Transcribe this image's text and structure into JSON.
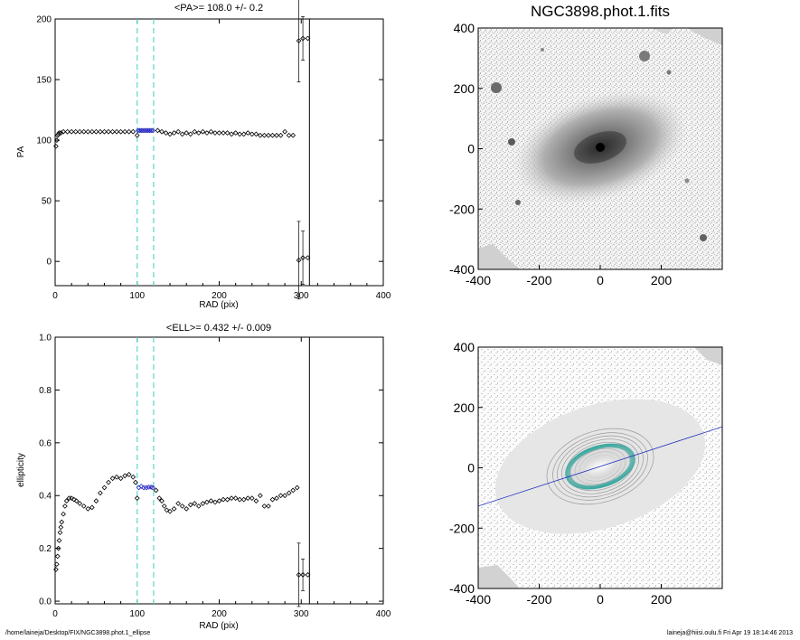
{
  "chart_data": [
    {
      "type": "scatter",
      "title": "<PA>= 108.0 +/-   0.2",
      "xlabel": "RAD (pix)",
      "ylabel": "PA",
      "xlim": [
        0,
        400
      ],
      "ylim": [
        -20,
        200
      ],
      "xticks": [
        0,
        100,
        200,
        300,
        400
      ],
      "yticks": [
        0,
        50,
        100,
        150,
        200
      ],
      "vlines_dashed": [
        100,
        120
      ],
      "vline_solid": 310,
      "series": [
        {
          "marker": "diamond",
          "color": "#000000",
          "points": [
            [
              1,
              95
            ],
            [
              2,
              100
            ],
            [
              3,
              104
            ],
            [
              4,
              105
            ],
            [
              5,
              106
            ],
            [
              7,
              106
            ],
            [
              10,
              107
            ],
            [
              15,
              107
            ],
            [
              20,
              107
            ],
            [
              25,
              107
            ],
            [
              30,
              107
            ],
            [
              35,
              107
            ],
            [
              40,
              107
            ],
            [
              45,
              107
            ],
            [
              50,
              107
            ],
            [
              55,
              107
            ],
            [
              60,
              107
            ],
            [
              65,
              107
            ],
            [
              70,
              107
            ],
            [
              75,
              107
            ],
            [
              80,
              107
            ],
            [
              85,
              107
            ],
            [
              90,
              107
            ],
            [
              95,
              107
            ],
            [
              100,
              104
            ],
            [
              125,
              108
            ],
            [
              130,
              107
            ],
            [
              135,
              106
            ],
            [
              140,
              105
            ],
            [
              145,
              106
            ],
            [
              150,
              107
            ],
            [
              155,
              105
            ],
            [
              160,
              106
            ],
            [
              165,
              105
            ],
            [
              170,
              107
            ],
            [
              175,
              106
            ],
            [
              180,
              107
            ],
            [
              185,
              106
            ],
            [
              190,
              107
            ],
            [
              195,
              106
            ],
            [
              200,
              106
            ],
            [
              205,
              106
            ],
            [
              210,
              106
            ],
            [
              215,
              105
            ],
            [
              220,
              106
            ],
            [
              225,
              105
            ],
            [
              230,
              105
            ],
            [
              235,
              106
            ],
            [
              240,
              105
            ],
            [
              245,
              105
            ],
            [
              250,
              104
            ],
            [
              255,
              104
            ],
            [
              260,
              104
            ],
            [
              265,
              104
            ],
            [
              270,
              104
            ],
            [
              275,
              104
            ],
            [
              280,
              107
            ],
            [
              285,
              104
            ],
            [
              290,
              104
            ]
          ],
          "error_points": [
            [
              297,
              182,
              34
            ],
            [
              302,
              184,
              18
            ],
            [
              308,
              184,
              0
            ],
            [
              297,
              1,
              32
            ],
            [
              302,
              3,
              22
            ],
            [
              308,
              3,
              0
            ]
          ]
        },
        {
          "marker": "diamond",
          "color": "#2020c0",
          "points": [
            [
              101,
              108
            ],
            [
              103,
              108
            ],
            [
              105,
              108
            ],
            [
              107,
              108
            ],
            [
              109,
              108
            ],
            [
              111,
              108
            ],
            [
              113,
              108
            ],
            [
              115,
              108
            ],
            [
              117,
              108
            ],
            [
              119,
              108
            ]
          ]
        }
      ]
    },
    {
      "type": "scatter",
      "title": "<ELL>= 0.432 +/-  0.009",
      "xlabel": "RAD (pix)",
      "ylabel": "ellipticity",
      "xlim": [
        0,
        400
      ],
      "ylim": [
        -0.01,
        1.0
      ],
      "xticks": [
        0,
        100,
        200,
        300,
        400
      ],
      "yticks": [
        0.0,
        0.2,
        0.4,
        0.6,
        0.8,
        1.0
      ],
      "vlines_dashed": [
        100,
        120
      ],
      "vline_solid": 310,
      "series": [
        {
          "marker": "diamond",
          "color": "#000000",
          "points": [
            [
              1,
              0.12
            ],
            [
              2,
              0.14
            ],
            [
              3,
              0.17
            ],
            [
              4,
              0.2
            ],
            [
              5,
              0.23
            ],
            [
              6,
              0.26
            ],
            [
              7,
              0.28
            ],
            [
              8,
              0.3
            ],
            [
              10,
              0.33
            ],
            [
              12,
              0.36
            ],
            [
              14,
              0.38
            ],
            [
              17,
              0.39
            ],
            [
              20,
              0.39
            ],
            [
              23,
              0.385
            ],
            [
              26,
              0.38
            ],
            [
              30,
              0.37
            ],
            [
              35,
              0.36
            ],
            [
              40,
              0.35
            ],
            [
              45,
              0.355
            ],
            [
              50,
              0.38
            ],
            [
              55,
              0.41
            ],
            [
              60,
              0.43
            ],
            [
              65,
              0.45
            ],
            [
              70,
              0.465
            ],
            [
              75,
              0.47
            ],
            [
              80,
              0.465
            ],
            [
              85,
              0.475
            ],
            [
              90,
              0.48
            ],
            [
              95,
              0.47
            ],
            [
              98,
              0.45
            ],
            [
              100,
              0.39
            ],
            [
              123,
              0.42
            ],
            [
              127,
              0.39
            ],
            [
              130,
              0.38
            ],
            [
              133,
              0.36
            ],
            [
              136,
              0.345
            ],
            [
              140,
              0.34
            ],
            [
              145,
              0.35
            ],
            [
              150,
              0.37
            ],
            [
              155,
              0.36
            ],
            [
              160,
              0.35
            ],
            [
              165,
              0.365
            ],
            [
              170,
              0.37
            ],
            [
              175,
              0.36
            ],
            [
              180,
              0.37
            ],
            [
              185,
              0.375
            ],
            [
              190,
              0.38
            ],
            [
              195,
              0.375
            ],
            [
              200,
              0.38
            ],
            [
              205,
              0.385
            ],
            [
              210,
              0.385
            ],
            [
              215,
              0.39
            ],
            [
              220,
              0.39
            ],
            [
              225,
              0.385
            ],
            [
              230,
              0.385
            ],
            [
              235,
              0.39
            ],
            [
              240,
              0.39
            ],
            [
              245,
              0.38
            ],
            [
              250,
              0.4
            ],
            [
              255,
              0.36
            ],
            [
              260,
              0.36
            ],
            [
              265,
              0.385
            ],
            [
              270,
              0.39
            ],
            [
              275,
              0.4
            ],
            [
              280,
              0.4
            ],
            [
              285,
              0.41
            ],
            [
              290,
              0.42
            ],
            [
              295,
              0.43
            ]
          ],
          "error_points": [
            [
              297,
              0.1,
              0.12
            ],
            [
              302,
              0.1,
              0.06
            ],
            [
              308,
              0.1,
              0.0
            ]
          ]
        },
        {
          "marker": "diamond",
          "color": "#2020c0",
          "points": [
            [
              102,
              0.43
            ],
            [
              105,
              0.435
            ],
            [
              108,
              0.43
            ],
            [
              111,
              0.43
            ],
            [
              114,
              0.432
            ],
            [
              117,
              0.432
            ],
            [
              119,
              0.43
            ]
          ]
        }
      ]
    }
  ],
  "images": {
    "top": {
      "title": "NGC3898.phot.1.fits",
      "xlim": [
        -400,
        400
      ],
      "ylim": [
        -400,
        400
      ],
      "xticks": [
        -400,
        -200,
        0,
        200
      ],
      "yticks": [
        -400,
        -200,
        0,
        200,
        400
      ]
    },
    "bottom": {
      "xlim": [
        -400,
        400
      ],
      "ylim": [
        -400,
        400
      ],
      "xticks": [
        -400,
        -200,
        0,
        200
      ],
      "yticks": [
        -400,
        -200,
        0,
        200,
        400
      ],
      "fit_ellipse": {
        "pa_deg": 108.0,
        "ell": 0.432,
        "sma": 110
      },
      "colors": {
        "ellipse": "#3aa8a0",
        "line": "#2030c0"
      }
    }
  },
  "footer": {
    "left": "/home/laineja/Desktop/FIX/NGC3898.phot.1_ellipse",
    "right": "laineja@hiisi.oulu.fi  Fri Apr 19 18:14:46 2013"
  }
}
